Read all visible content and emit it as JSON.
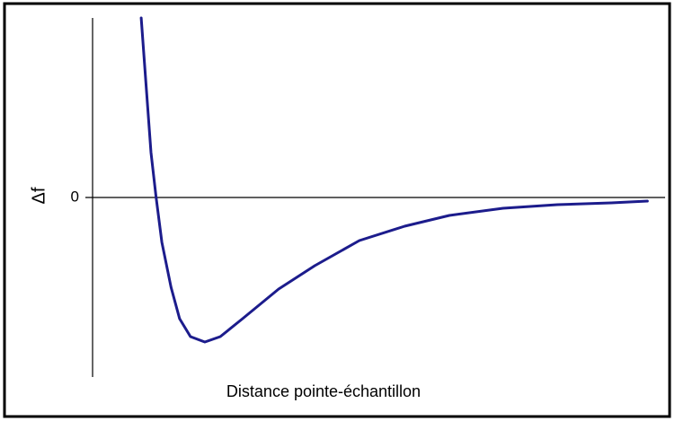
{
  "chart_data": {
    "type": "line",
    "ylabel": "Δf",
    "xlabel": "Distance pointe-échantillon",
    "x": [
      0.085,
      0.094,
      0.102,
      0.111,
      0.121,
      0.137,
      0.152,
      0.171,
      0.196,
      0.223,
      0.262,
      0.325,
      0.388,
      0.466,
      0.545,
      0.623,
      0.717,
      0.812,
      0.906,
      0.969
    ],
    "values": [
      1.0,
      0.6,
      0.25,
      0,
      -0.25,
      -0.5,
      -0.675,
      -0.775,
      -0.805,
      -0.775,
      -0.675,
      -0.51,
      -0.38,
      -0.24,
      -0.16,
      -0.1,
      -0.06,
      -0.04,
      -0.03,
      -0.02
    ],
    "color": "#1c1c8c",
    "xlim": [
      0,
      1
    ],
    "ylim": [
      -0.99,
      1
    ],
    "yticks": [
      0
    ]
  }
}
